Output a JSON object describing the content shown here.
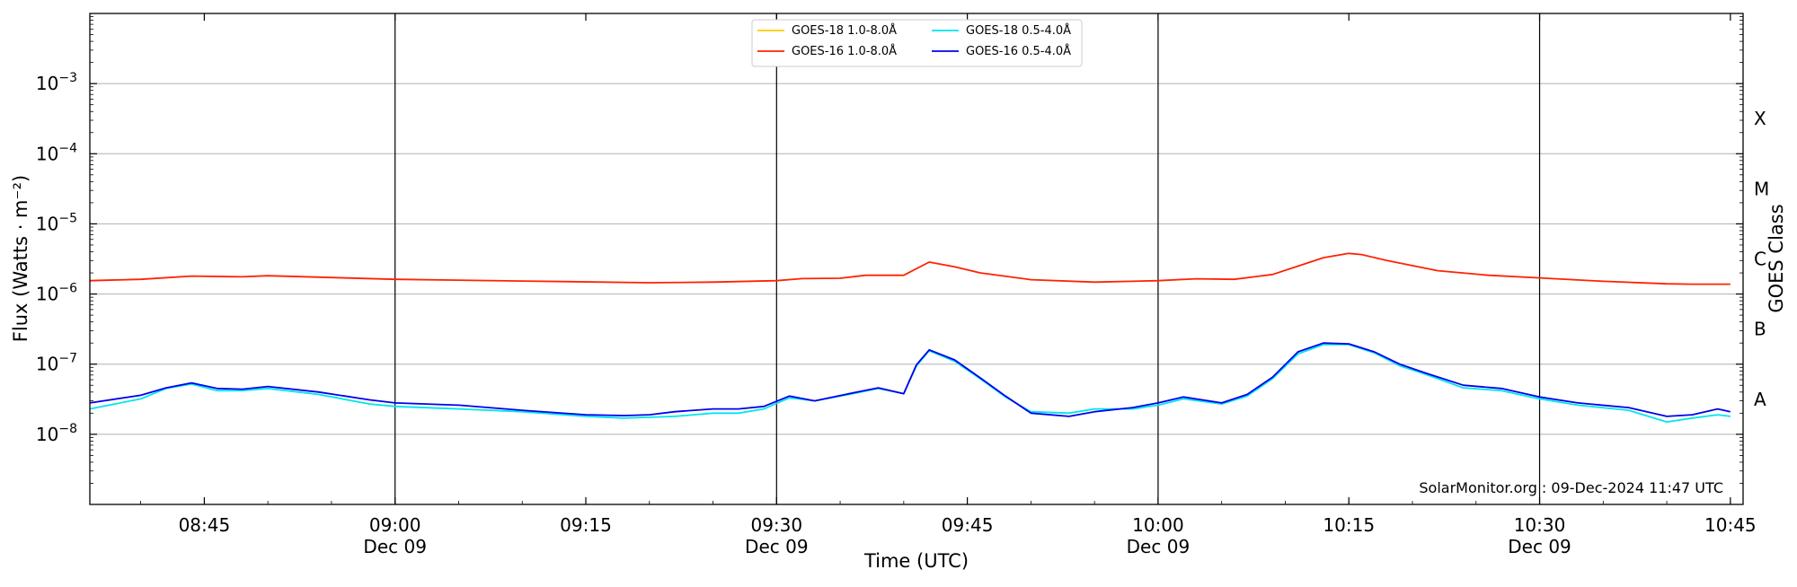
{
  "chart_data": {
    "type": "line",
    "xlabel": "Time (UTC)",
    "ylabel": "Flux (Watts · m⁻²)",
    "right_ylabel": "GOES Class",
    "yscale": "log",
    "xlim": [
      "08:36",
      "10:46"
    ],
    "ylim": [
      1e-09,
      0.01
    ],
    "grid": "horizontal at decades, vertical black lines at 09:00, 09:30, 10:00, 10:30",
    "legend_position": "top-center",
    "watermark": "SolarMonitor.org : 09-Dec-2024 11:47 UTC",
    "x_ticks": [
      {
        "time": "08:45",
        "label": "08:45",
        "sublabel": ""
      },
      {
        "time": "09:00",
        "label": "09:00",
        "sublabel": "Dec 09"
      },
      {
        "time": "09:15",
        "label": "09:15",
        "sublabel": ""
      },
      {
        "time": "09:30",
        "label": "09:30",
        "sublabel": "Dec 09"
      },
      {
        "time": "09:45",
        "label": "09:45",
        "sublabel": ""
      },
      {
        "time": "10:00",
        "label": "10:00",
        "sublabel": "Dec 09"
      },
      {
        "time": "10:15",
        "label": "10:15",
        "sublabel": ""
      },
      {
        "time": "10:30",
        "label": "10:30",
        "sublabel": "Dec 09"
      },
      {
        "time": "10:45",
        "label": "10:45",
        "sublabel": ""
      }
    ],
    "y_ticks": [
      {
        "exp": -8,
        "label": "10",
        "sup": "−8"
      },
      {
        "exp": -7,
        "label": "10",
        "sup": "−7"
      },
      {
        "exp": -6,
        "label": "10",
        "sup": "−6"
      },
      {
        "exp": -5,
        "label": "10",
        "sup": "−5"
      },
      {
        "exp": -4,
        "label": "10",
        "sup": "−4"
      },
      {
        "exp": -3,
        "label": "10",
        "sup": "−3"
      }
    ],
    "class_labels": [
      {
        "label": "A",
        "exp": -7.5
      },
      {
        "label": "B",
        "exp": -6.5
      },
      {
        "label": "C",
        "exp": -5.5
      },
      {
        "label": "M",
        "exp": -4.5
      },
      {
        "label": "X",
        "exp": -3.5
      }
    ],
    "series": [
      {
        "name": "GOES-18 1.0-8.0Å",
        "color": "#ffcc00",
        "times": [],
        "values": []
      },
      {
        "name": "GOES-16 1.0-8.0Å",
        "color": "#ff2200",
        "times": [
          "08:36",
          "08:40",
          "08:44",
          "08:48",
          "08:50",
          "08:54",
          "09:00",
          "09:10",
          "09:20",
          "09:25",
          "09:30",
          "09:32",
          "09:35",
          "09:37",
          "09:40",
          "09:42",
          "09:44",
          "09:46",
          "09:50",
          "09:55",
          "10:00",
          "10:03",
          "10:06",
          "10:09",
          "10:11",
          "10:13",
          "10:15",
          "10:16",
          "10:18",
          "10:22",
          "10:26",
          "10:30",
          "10:35",
          "10:40",
          "10:42",
          "10:45"
        ],
        "values": [
          1.55e-06,
          1.62e-06,
          1.8e-06,
          1.76e-06,
          1.82e-06,
          1.74e-06,
          1.62e-06,
          1.53e-06,
          1.45e-06,
          1.48e-06,
          1.55e-06,
          1.66e-06,
          1.68e-06,
          1.85e-06,
          1.85e-06,
          2.85e-06,
          2.45e-06,
          2e-06,
          1.6e-06,
          1.48e-06,
          1.55e-06,
          1.65e-06,
          1.62e-06,
          1.9e-06,
          2.5e-06,
          3.3e-06,
          3.8e-06,
          3.65e-06,
          3e-06,
          2.15e-06,
          1.85e-06,
          1.7e-06,
          1.52e-06,
          1.4e-06,
          1.38e-06,
          1.38e-06
        ]
      },
      {
        "name": "GOES-18 0.5-4.0Å",
        "color": "#00e5ee",
        "times": [
          "08:36",
          "08:40",
          "08:42",
          "08:44",
          "08:46",
          "08:48",
          "08:50",
          "08:54",
          "08:58",
          "09:00",
          "09:05",
          "09:10",
          "09:15",
          "09:18",
          "09:20",
          "09:22",
          "09:25",
          "09:27",
          "09:29",
          "09:31",
          "09:33",
          "09:36",
          "09:38",
          "09:40",
          "09:41",
          "09:42",
          "09:44",
          "09:46",
          "09:48",
          "09:50",
          "09:53",
          "09:55",
          "09:58",
          "10:00",
          "10:02",
          "10:05",
          "10:07",
          "10:09",
          "10:11",
          "10:13",
          "10:15",
          "10:17",
          "10:19",
          "10:21",
          "10:24",
          "10:27",
          "10:30",
          "10:33",
          "10:37",
          "10:40",
          "10:42",
          "10:44",
          "10:45"
        ],
        "values": [
          2.3e-08,
          3.2e-08,
          4.5e-08,
          5.2e-08,
          4.2e-08,
          4.2e-08,
          4.5e-08,
          3.7e-08,
          2.7e-08,
          2.5e-08,
          2.3e-08,
          2.1e-08,
          1.8e-08,
          1.7e-08,
          1.75e-08,
          1.8e-08,
          2e-08,
          2e-08,
          2.3e-08,
          3.3e-08,
          3e-08,
          3.8e-08,
          4.5e-08,
          3.8e-08,
          9.5e-08,
          1.55e-07,
          1.1e-07,
          6.2e-08,
          3.4e-08,
          2.1e-08,
          2e-08,
          2.3e-08,
          2.3e-08,
          2.6e-08,
          3.2e-08,
          2.7e-08,
          3.5e-08,
          6.2e-08,
          1.4e-07,
          1.9e-07,
          1.9e-07,
          1.45e-07,
          9.5e-08,
          7.2e-08,
          4.6e-08,
          4.2e-08,
          3.2e-08,
          2.6e-08,
          2.2e-08,
          1.5e-08,
          1.7e-08,
          1.9e-08,
          1.8e-08
        ]
      },
      {
        "name": "GOES-16 0.5-4.0Å",
        "color": "#0000ee",
        "times": [
          "08:36",
          "08:40",
          "08:42",
          "08:44",
          "08:46",
          "08:48",
          "08:50",
          "08:54",
          "08:58",
          "09:00",
          "09:05",
          "09:10",
          "09:15",
          "09:18",
          "09:20",
          "09:22",
          "09:25",
          "09:27",
          "09:29",
          "09:31",
          "09:33",
          "09:36",
          "09:38",
          "09:40",
          "09:41",
          "09:42",
          "09:44",
          "09:46",
          "09:48",
          "09:50",
          "09:53",
          "09:55",
          "09:58",
          "10:00",
          "10:02",
          "10:05",
          "10:07",
          "10:09",
          "10:11",
          "10:13",
          "10:15",
          "10:17",
          "10:19",
          "10:21",
          "10:24",
          "10:27",
          "10:30",
          "10:33",
          "10:37",
          "10:40",
          "10:42",
          "10:44",
          "10:45"
        ],
        "values": [
          2.8e-08,
          3.6e-08,
          4.6e-08,
          5.4e-08,
          4.5e-08,
          4.4e-08,
          4.8e-08,
          4e-08,
          3.1e-08,
          2.8e-08,
          2.6e-08,
          2.2e-08,
          1.9e-08,
          1.85e-08,
          1.9e-08,
          2.1e-08,
          2.3e-08,
          2.3e-08,
          2.5e-08,
          3.5e-08,
          3e-08,
          3.9e-08,
          4.6e-08,
          3.8e-08,
          9.8e-08,
          1.6e-07,
          1.15e-07,
          6.4e-08,
          3.5e-08,
          2e-08,
          1.8e-08,
          2.1e-08,
          2.4e-08,
          2.8e-08,
          3.4e-08,
          2.8e-08,
          3.7e-08,
          6.5e-08,
          1.5e-07,
          2e-07,
          1.95e-07,
          1.5e-07,
          1e-07,
          7.5e-08,
          5e-08,
          4.5e-08,
          3.4e-08,
          2.8e-08,
          2.4e-08,
          1.8e-08,
          1.9e-08,
          2.3e-08,
          2.1e-08
        ]
      }
    ]
  }
}
